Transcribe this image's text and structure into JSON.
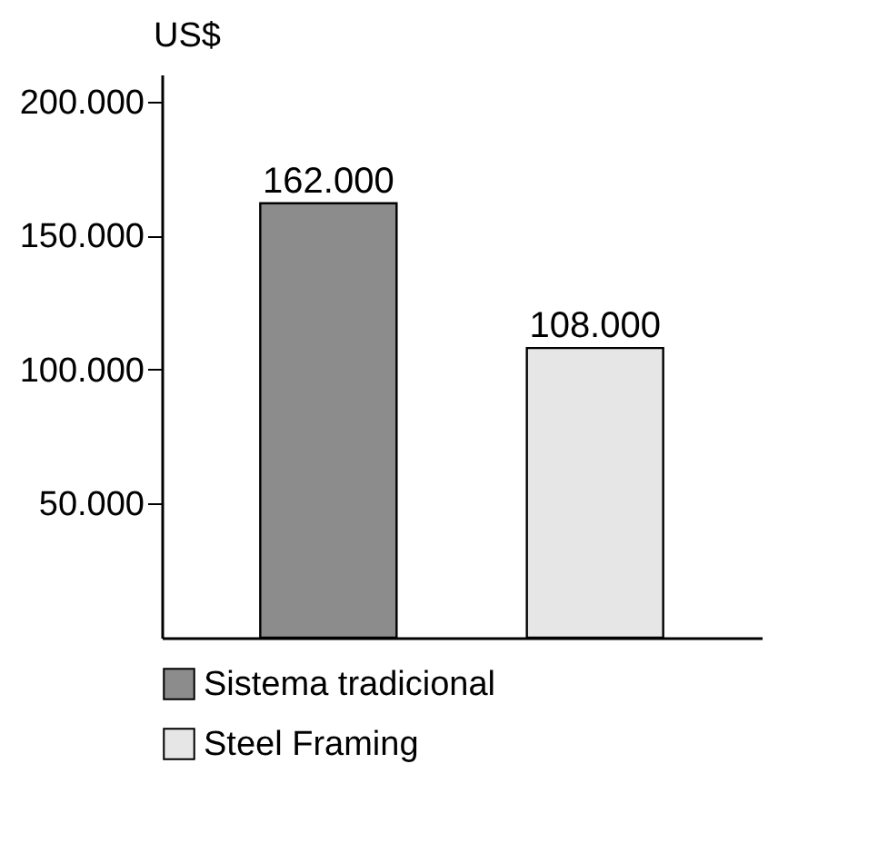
{
  "chart_data": {
    "type": "bar",
    "ylabel": "US$",
    "categories": [
      null,
      null
    ],
    "series": [
      {
        "name": "Sistema tradicional",
        "color": "#8c8c8c",
        "values": [
          162000,
          null
        ],
        "value_labels": [
          "162.000",
          null
        ]
      },
      {
        "name": "Steel Framing",
        "color": "#e6e6e6",
        "values": [
          null,
          108000
        ],
        "value_labels": [
          null,
          "108.000"
        ]
      }
    ],
    "ylim": [
      0,
      210000
    ],
    "yticks": [
      {
        "value": 50000,
        "label": "50.000"
      },
      {
        "value": 100000,
        "label": "100.000"
      },
      {
        "value": 150000,
        "label": "150.000"
      },
      {
        "value": 200000,
        "label": "200.000"
      }
    ],
    "grid": false,
    "legend": "bottom"
  }
}
